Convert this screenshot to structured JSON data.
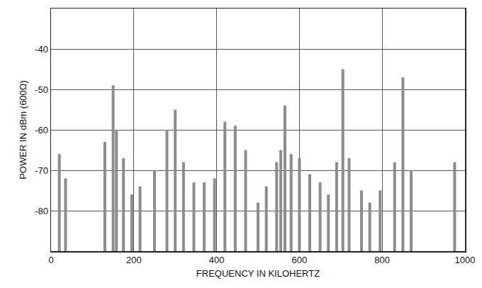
{
  "chart_data": {
    "type": "stem",
    "x_label": "FREQUENCY IN KILOHERTZ",
    "y_label": "POWER IN dBm (600Ω)",
    "x": [
      20,
      35,
      130,
      150,
      158,
      175,
      195,
      215,
      250,
      280,
      300,
      320,
      345,
      370,
      395,
      420,
      445,
      470,
      500,
      520,
      545,
      555,
      565,
      580,
      600,
      625,
      650,
      670,
      690,
      705,
      720,
      750,
      770,
      795,
      830,
      850,
      870,
      975
    ],
    "values": [
      -66,
      -72,
      -63,
      -49,
      -60,
      -67,
      -76,
      -74,
      -70,
      -60,
      -55,
      -68,
      -73,
      -73,
      -72,
      -58,
      -59,
      -65,
      -78,
      -74,
      -68,
      -65,
      -54,
      -66,
      -67,
      -71,
      -73,
      -76,
      -68,
      -45,
      -67,
      -75,
      -78,
      -75,
      -68,
      -47,
      -70,
      -68
    ],
    "color": "#8c8c8c",
    "xlim": [
      0,
      1000
    ],
    "xticks": [
      0,
      200,
      400,
      600,
      800,
      1000
    ],
    "ylim": [
      -90,
      -30
    ],
    "yticks": [
      -80,
      -70,
      -60,
      -50,
      -40
    ],
    "grid": true
  }
}
